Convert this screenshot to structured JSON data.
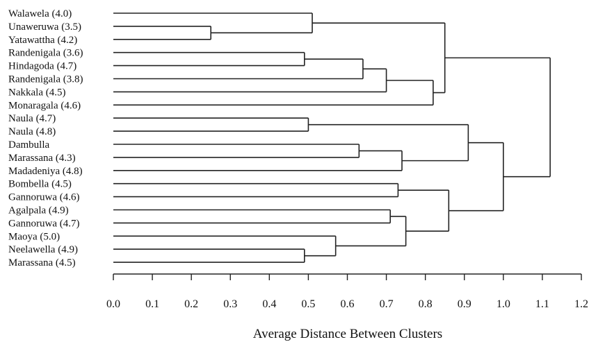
{
  "chart_data": {
    "type": "dendrogram",
    "xlabel": "Average Distance Between Clusters",
    "xlim": [
      0.0,
      1.2
    ],
    "ticks": [
      "0.0",
      "0.1",
      "0.2",
      "0.3",
      "0.4",
      "0.5",
      "0.6",
      "0.7",
      "0.8",
      "0.9",
      "1.0",
      "1.1",
      "1.2"
    ],
    "leaves": [
      "Walawela (4.0)",
      "Unaweruwa (3.5)",
      "Yatawattha (4.2)",
      "Randenigala (3.6)",
      "Hindagoda (4.7)",
      "Randenigala (3.8)",
      "Nakkala (4.5)",
      "Monaragala (4.6)",
      "Naula (4.7)",
      "Naula (4.8)",
      "Dambulla",
      "Marassana (4.3)",
      "Madadeniya (4.8)",
      "Bombella (4.5)",
      "Gannoruwa (4.6)",
      "Agalpala (4.9)",
      "Gannoruwa (4.7)",
      "Maoya (5.0)",
      "Neelawella (4.9)",
      "Marassana (4.5)"
    ],
    "merges": [
      {
        "id": "A",
        "children": [
          "L1",
          "L2"
        ],
        "height": 0.25
      },
      {
        "id": "B",
        "children": [
          "L0",
          "A"
        ],
        "height": 0.51
      },
      {
        "id": "C",
        "children": [
          "L3",
          "L4"
        ],
        "height": 0.49
      },
      {
        "id": "D",
        "children": [
          "C",
          "L5"
        ],
        "height": 0.64
      },
      {
        "id": "E",
        "children": [
          "D",
          "L6"
        ],
        "height": 0.7
      },
      {
        "id": "F",
        "children": [
          "E",
          "L7"
        ],
        "height": 0.82
      },
      {
        "id": "G",
        "children": [
          "B",
          "F"
        ],
        "height": 0.85
      },
      {
        "id": "H",
        "children": [
          "L8",
          "L9"
        ],
        "height": 0.5
      },
      {
        "id": "I",
        "children": [
          "L10",
          "L11"
        ],
        "height": 0.63
      },
      {
        "id": "J",
        "children": [
          "I",
          "L12"
        ],
        "height": 0.74
      },
      {
        "id": "K",
        "children": [
          "H",
          "J"
        ],
        "height": 0.91
      },
      {
        "id": "M",
        "children": [
          "L13",
          "L14"
        ],
        "height": 0.73
      },
      {
        "id": "N",
        "children": [
          "L15",
          "L16"
        ],
        "height": 0.71
      },
      {
        "id": "P",
        "children": [
          "L18",
          "L19"
        ],
        "height": 0.49
      },
      {
        "id": "Q",
        "children": [
          "L17",
          "P"
        ],
        "height": 0.57
      },
      {
        "id": "R",
        "children": [
          "N",
          "Q"
        ],
        "height": 0.75
      },
      {
        "id": "S",
        "children": [
          "M",
          "R"
        ],
        "height": 0.86
      },
      {
        "id": "T",
        "children": [
          "K",
          "S"
        ],
        "height": 1.0
      },
      {
        "id": "U",
        "children": [
          "G",
          "T"
        ],
        "height": 1.12
      }
    ]
  }
}
